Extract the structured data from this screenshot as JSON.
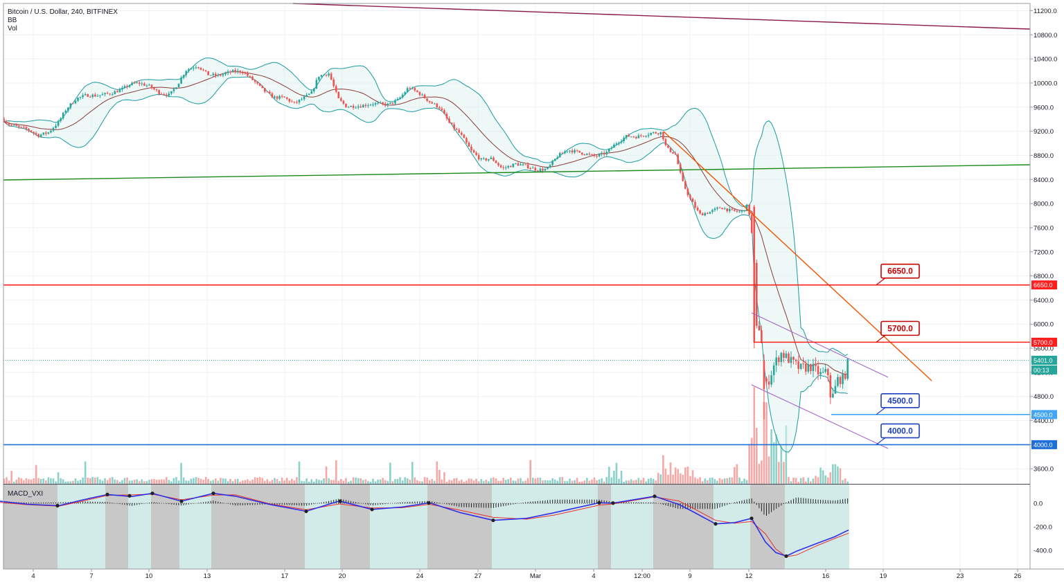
{
  "header": {
    "title": "Bitcoin / U.S. Dollar, 240, BITFINEX",
    "indicator_bb": "BB",
    "indicator_vol": "Vol",
    "macd_label": "MACD_VXI"
  },
  "colors": {
    "bull": "#26a69a",
    "bear": "#ef5350",
    "bb_band": "#1a9aa0",
    "bb_mid": "#8b3a3a",
    "red_line": "#ff1e1e",
    "blue_line": "#1e6fd9",
    "light_blue_line": "#42a5f5",
    "green_line": "#1b8a1b",
    "maroon_line": "#8b1a4a",
    "orange_line": "#ef5a0b",
    "purple_line": "#a05cc8",
    "macd_line": "#2e2ee6",
    "signal_line": "#e62e2e",
    "macd_bg_gray": "#c8c8c8",
    "macd_bg_teal": "#d2ebe8"
  },
  "chart_data": {
    "type": "candlestick",
    "x_ticks": [
      "4",
      "7",
      "10",
      "13",
      "17",
      "20",
      "24",
      "27",
      "Mar",
      "4",
      "12:00",
      "9",
      "12",
      "16",
      "19",
      "23",
      "26"
    ],
    "y_ticks": [
      "11200.0",
      "10800.0",
      "10400.0",
      "10000.0",
      "9600.0",
      "9200.0",
      "8800.0",
      "8400.0",
      "8000.0",
      "7600.0",
      "7200.0",
      "6800.0",
      "6400.0",
      "6000.0",
      "5600.0",
      "5200.0",
      "4800.0",
      "4400.0",
      "4000.0",
      "3600.0"
    ],
    "ylim": [
      3350,
      11320
    ],
    "macd_ticks": [
      "0.0",
      "-200.0",
      "-400.0"
    ],
    "macd_ylim": [
      -560,
      160
    ],
    "last_price": "5401.0",
    "countdown": "00:13",
    "levels": [
      {
        "value": 6650,
        "label": "6650.0",
        "color": "#ff1e1e"
      },
      {
        "value": 5700,
        "label": "5700.0",
        "color": "#ff1e1e"
      },
      {
        "value": 4500,
        "label": "4500.0",
        "color": "#42a5f5"
      },
      {
        "value": 4000,
        "label": "4000.0",
        "color": "#1e6fd9"
      }
    ],
    "callouts": [
      {
        "label": "6650.0",
        "value": 6650,
        "color": "#c80000"
      },
      {
        "label": "5700.0",
        "value": 5700,
        "color": "#c80000"
      },
      {
        "label": "4500.0",
        "value": 4500,
        "color": "#1e3fbf"
      },
      {
        "label": "4000.0",
        "value": 4000,
        "color": "#1e3fbf"
      }
    ],
    "price_path": [
      [
        0,
        9450
      ],
      [
        12,
        9320
      ],
      [
        25,
        9270
      ],
      [
        40,
        9230
      ],
      [
        55,
        9130
      ],
      [
        70,
        9180
      ],
      [
        85,
        9360
      ],
      [
        95,
        9560
      ],
      [
        110,
        9740
      ],
      [
        125,
        9800
      ],
      [
        140,
        9790
      ],
      [
        160,
        9830
      ],
      [
        175,
        9890
      ],
      [
        188,
        9980
      ],
      [
        200,
        10000
      ],
      [
        215,
        9950
      ],
      [
        230,
        9840
      ],
      [
        245,
        9800
      ],
      [
        258,
        10010
      ],
      [
        268,
        10210
      ],
      [
        285,
        10290
      ],
      [
        300,
        10140
      ],
      [
        315,
        10120
      ],
      [
        335,
        10190
      ],
      [
        350,
        10190
      ],
      [
        365,
        10050
      ],
      [
        380,
        9880
      ],
      [
        395,
        9760
      ],
      [
        410,
        9760
      ],
      [
        425,
        9660
      ],
      [
        440,
        9760
      ],
      [
        450,
        9840
      ],
      [
        460,
        10120
      ],
      [
        475,
        10160
      ],
      [
        488,
        9740
      ],
      [
        500,
        9610
      ],
      [
        520,
        9620
      ],
      [
        540,
        9660
      ],
      [
        560,
        9640
      ],
      [
        575,
        9720
      ],
      [
        590,
        9930
      ],
      [
        605,
        9830
      ],
      [
        620,
        9690
      ],
      [
        635,
        9590
      ],
      [
        650,
        9310
      ],
      [
        665,
        9150
      ],
      [
        680,
        8880
      ],
      [
        695,
        8720
      ],
      [
        710,
        8750
      ],
      [
        725,
        8580
      ],
      [
        745,
        8660
      ],
      [
        760,
        8620
      ],
      [
        775,
        8560
      ],
      [
        790,
        8570
      ],
      [
        805,
        8790
      ],
      [
        820,
        8890
      ],
      [
        840,
        8840
      ],
      [
        860,
        8780
      ],
      [
        875,
        8840
      ],
      [
        890,
        9010
      ],
      [
        905,
        9120
      ],
      [
        920,
        9110
      ],
      [
        940,
        9170
      ],
      [
        955,
        9180
      ],
      [
        962,
        8920
      ],
      [
        975,
        8820
      ],
      [
        985,
        8370
      ],
      [
        995,
        8100
      ],
      [
        1010,
        7820
      ],
      [
        1025,
        7860
      ],
      [
        1040,
        7940
      ],
      [
        1055,
        7880
      ],
      [
        1070,
        7860
      ],
      [
        1080,
        7980
      ],
      [
        1088,
        7250
      ],
      [
        1092,
        5900
      ],
      [
        1098,
        5980
      ],
      [
        1104,
        4900
      ],
      [
        1110,
        5080
      ],
      [
        1118,
        5340
      ],
      [
        1128,
        5520
      ],
      [
        1140,
        5400
      ],
      [
        1155,
        5260
      ],
      [
        1170,
        5300
      ],
      [
        1185,
        5160
      ],
      [
        1195,
        5200
      ],
      [
        1200,
        4720
      ],
      [
        1210,
        5100
      ],
      [
        1218,
        5080
      ],
      [
        1225,
        5401
      ]
    ],
    "macd_path": [
      [
        0,
        18
      ],
      [
        40,
        -8
      ],
      [
        85,
        -20
      ],
      [
        120,
        30
      ],
      [
        155,
        75
      ],
      [
        190,
        58
      ],
      [
        220,
        85
      ],
      [
        262,
        18
      ],
      [
        308,
        85
      ],
      [
        340,
        60
      ],
      [
        390,
        -10
      ],
      [
        442,
        -68
      ],
      [
        490,
        20
      ],
      [
        537,
        -52
      ],
      [
        580,
        -32
      ],
      [
        620,
        5
      ],
      [
        665,
        -80
      ],
      [
        712,
        -145
      ],
      [
        760,
        -128
      ],
      [
        800,
        -80
      ],
      [
        865,
        5
      ],
      [
        885,
        2
      ],
      [
        945,
        60
      ],
      [
        980,
        -10
      ],
      [
        1000,
        -70
      ],
      [
        1033,
        -175
      ],
      [
        1060,
        -165
      ],
      [
        1085,
        -128
      ],
      [
        1105,
        -330
      ],
      [
        1120,
        -420
      ],
      [
        1135,
        -450
      ],
      [
        1150,
        -408
      ],
      [
        1180,
        -340
      ],
      [
        1205,
        -285
      ],
      [
        1225,
        -228
      ]
    ],
    "signal_path": [
      [
        0,
        8
      ],
      [
        40,
        -12
      ],
      [
        85,
        -25
      ],
      [
        120,
        20
      ],
      [
        155,
        68
      ],
      [
        190,
        72
      ],
      [
        220,
        78
      ],
      [
        262,
        30
      ],
      [
        308,
        70
      ],
      [
        340,
        72
      ],
      [
        390,
        -5
      ],
      [
        442,
        -55
      ],
      [
        490,
        -5
      ],
      [
        537,
        -40
      ],
      [
        580,
        -38
      ],
      [
        620,
        -8
      ],
      [
        665,
        -60
      ],
      [
        712,
        -120
      ],
      [
        760,
        -135
      ],
      [
        800,
        -100
      ],
      [
        865,
        -15
      ],
      [
        885,
        -5
      ],
      [
        945,
        55
      ],
      [
        980,
        20
      ],
      [
        1000,
        -40
      ],
      [
        1033,
        -145
      ],
      [
        1060,
        -170
      ],
      [
        1085,
        -155
      ],
      [
        1105,
        -260
      ],
      [
        1120,
        -390
      ],
      [
        1135,
        -455
      ],
      [
        1150,
        -440
      ],
      [
        1180,
        -360
      ],
      [
        1205,
        -300
      ],
      [
        1225,
        -255
      ]
    ],
    "macd_regions": [
      {
        "from": 5,
        "to": 83,
        "shade": "gray"
      },
      {
        "from": 83,
        "to": 152,
        "shade": "teal"
      },
      {
        "from": 152,
        "to": 185,
        "shade": "gray"
      },
      {
        "from": 185,
        "to": 218,
        "shade": "teal"
      },
      {
        "from": 218,
        "to": 259,
        "shade": "gray"
      },
      {
        "from": 259,
        "to": 305,
        "shade": "teal"
      },
      {
        "from": 305,
        "to": 440,
        "shade": "gray"
      },
      {
        "from": 440,
        "to": 491,
        "shade": "teal"
      },
      {
        "from": 491,
        "to": 534,
        "shade": "gray"
      },
      {
        "from": 534,
        "to": 617,
        "shade": "teal"
      },
      {
        "from": 617,
        "to": 710,
        "shade": "gray"
      },
      {
        "from": 710,
        "to": 863,
        "shade": "teal"
      },
      {
        "from": 863,
        "to": 882,
        "shade": "gray"
      },
      {
        "from": 882,
        "to": 943,
        "shade": "teal"
      },
      {
        "from": 943,
        "to": 1030,
        "shade": "gray"
      },
      {
        "from": 1030,
        "to": 1083,
        "shade": "teal"
      },
      {
        "from": 1083,
        "to": 1133,
        "shade": "gray"
      },
      {
        "from": 1133,
        "to": 1226,
        "shade": "teal"
      }
    ],
    "macd_dots": [
      [
        83,
        -20
      ],
      [
        155,
        75
      ],
      [
        187,
        64
      ],
      [
        220,
        85
      ],
      [
        262,
        18
      ],
      [
        308,
        85
      ],
      [
        442,
        -68
      ],
      [
        491,
        18
      ],
      [
        537,
        -52
      ],
      [
        619,
        3
      ],
      [
        712,
        -145
      ],
      [
        865,
        5
      ],
      [
        885,
        2
      ],
      [
        945,
        60
      ],
      [
        1033,
        -175
      ],
      [
        1085,
        -128
      ],
      [
        1135,
        -450
      ]
    ]
  }
}
